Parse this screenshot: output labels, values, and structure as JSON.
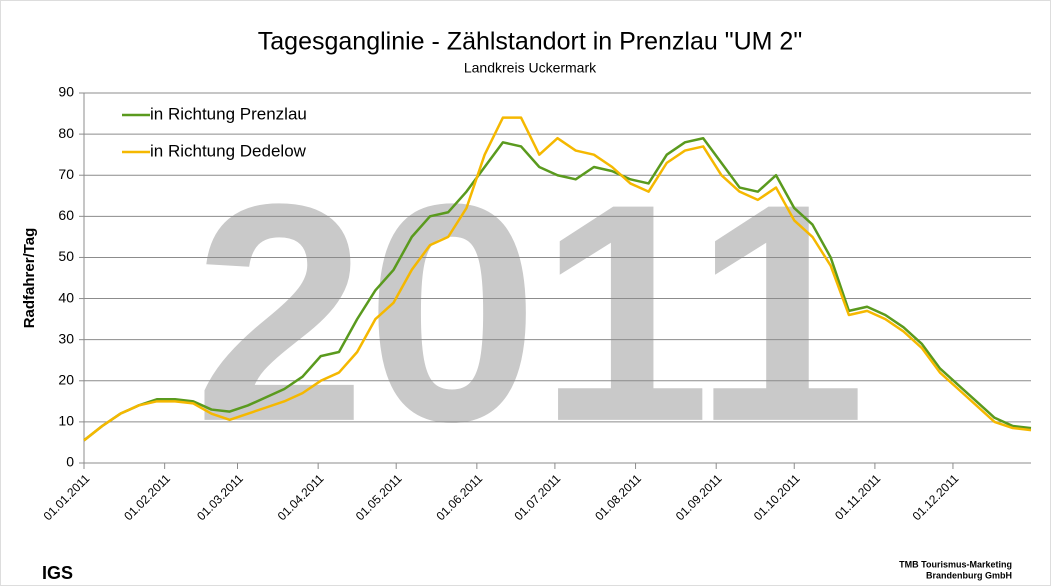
{
  "chart_data": {
    "type": "line",
    "title": "Tagesganglinie - Zählstandort in Prenzlau \"UM 2\"",
    "subtitle": "Landkreis Uckermark",
    "y_label": "Radfahrer/Tag",
    "watermark": "2011",
    "footer_left": "IGS",
    "footer_right": [
      "TMB Tourismus-Marketing",
      "Brandenburg GmbH"
    ],
    "x": [
      "01.01.2011",
      "08.01.2011",
      "15.01.2011",
      "22.01.2011",
      "29.01.2011",
      "05.02.2011",
      "12.02.2011",
      "19.02.2011",
      "26.02.2011",
      "05.03.2011",
      "12.03.2011",
      "19.03.2011",
      "26.03.2011",
      "02.04.2011",
      "09.04.2011",
      "16.04.2011",
      "23.04.2011",
      "30.04.2011",
      "07.05.2011",
      "14.05.2011",
      "21.05.2011",
      "28.05.2011",
      "04.06.2011",
      "11.06.2011",
      "18.06.2011",
      "25.06.2011",
      "02.07.2011",
      "09.07.2011",
      "16.07.2011",
      "23.07.2011",
      "30.07.2011",
      "06.08.2011",
      "13.08.2011",
      "20.08.2011",
      "27.08.2011",
      "03.09.2011",
      "10.09.2011",
      "17.09.2011",
      "24.09.2011",
      "01.10.2011",
      "08.10.2011",
      "15.10.2011",
      "22.10.2011",
      "29.10.2011",
      "05.11.2011",
      "12.11.2011",
      "19.11.2011",
      "26.11.2011",
      "03.12.2011",
      "10.12.2011",
      "17.12.2011",
      "24.12.2011",
      "31.12.2011"
    ],
    "series": [
      {
        "name": "in Richtung Prenzlau",
        "color": "#5a9a1e",
        "values": [
          5.5,
          9,
          12,
          14,
          15.5,
          15.5,
          15,
          13,
          12.5,
          14,
          16,
          18,
          21,
          26,
          27,
          35,
          42,
          47,
          55,
          60,
          61,
          66,
          72,
          78,
          77,
          72,
          70,
          69,
          72,
          71,
          69,
          68,
          75,
          78,
          79,
          73,
          67,
          66,
          70,
          62,
          58,
          50,
          37,
          38,
          36,
          33,
          29,
          23,
          19,
          15,
          11,
          9,
          8.5
        ]
      },
      {
        "name": "in Richtung Dedelow",
        "color": "#f5b800",
        "values": [
          5.5,
          9,
          12,
          14,
          15,
          15,
          14.5,
          12,
          10.5,
          12,
          13.5,
          15,
          17,
          20,
          22,
          27,
          35,
          39,
          47,
          53,
          55,
          62,
          75,
          84,
          84,
          75,
          79,
          76,
          75,
          72,
          68,
          66,
          73,
          76,
          77,
          70,
          66,
          64,
          67,
          59,
          55,
          48,
          36,
          37,
          35,
          32,
          28,
          22,
          18,
          14,
          10,
          8.5,
          8
        ]
      }
    ],
    "xlim": [
      "01.01.2011",
      "31.12.2011"
    ],
    "xticks": [
      "01.01.2011",
      "01.02.2011",
      "01.03.2011",
      "01.04.2011",
      "01.05.2011",
      "01.06.2011",
      "01.07.2011",
      "01.08.2011",
      "01.09.2011",
      "01.10.2011",
      "01.11.2011",
      "01.12.2011"
    ],
    "ylim": [
      0,
      90
    ],
    "yticks": [
      0,
      10,
      20,
      30,
      40,
      50,
      60,
      70,
      80,
      90
    ],
    "grid": true,
    "legend": "upper left"
  }
}
